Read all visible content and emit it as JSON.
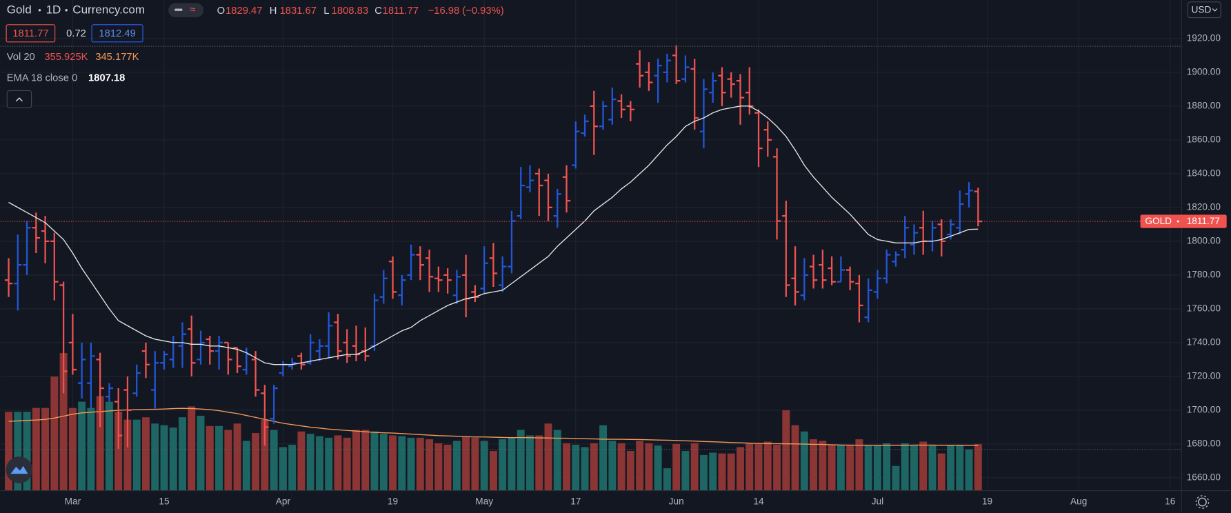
{
  "chart_data": {
    "type": "ohlc",
    "symbol": "Gold",
    "interval": "1D",
    "source": "Currency.com",
    "ohlc_labels": [
      "O",
      "H",
      "L",
      "C"
    ],
    "change": "−16.98 (−0.93%)",
    "spread": 0.72,
    "ask": 1812.49,
    "volume_name": "Vol 20",
    "volume_value_label": "355.925K",
    "volume_ma_value_label": "345.177K",
    "ema_name": "EMA 18 close 0",
    "price_tag": "GOLD",
    "currency": "USD",
    "x": [
      0,
      1,
      2,
      3,
      4,
      5,
      6,
      7,
      8,
      9,
      10,
      11,
      12,
      13,
      14,
      15,
      16,
      17,
      18,
      19,
      20,
      21,
      22,
      23,
      24,
      25,
      26,
      27,
      28,
      29,
      30,
      31,
      32,
      33,
      34,
      35,
      36,
      37,
      38,
      39,
      40,
      41,
      42,
      43,
      44,
      45,
      46,
      47,
      48,
      49,
      50,
      51,
      52,
      53,
      54,
      55,
      56,
      57,
      58,
      59,
      60,
      61,
      62,
      63,
      64,
      65,
      66,
      67,
      68,
      69,
      70,
      71,
      72,
      73,
      74,
      75,
      76,
      77,
      78,
      79,
      80,
      81,
      82,
      83,
      84,
      85,
      86,
      87,
      88,
      89,
      90,
      91,
      92,
      93,
      94,
      95,
      96,
      97,
      98,
      99,
      100,
      101,
      102,
      103,
      104,
      105,
      106
    ],
    "open": [
      1777,
      1775,
      1786,
      1808,
      1806,
      1800,
      1774,
      1740,
      1716,
      1716,
      1730,
      1708,
      1705,
      1712,
      1710,
      1735,
      1712,
      1728,
      1730,
      1738,
      1748,
      1730,
      1742,
      1735,
      1740,
      1737,
      1724,
      1730,
      1710,
      1695,
      1722,
      1726,
      1732,
      1728,
      1735,
      1738,
      1752,
      1740,
      1738,
      1735,
      1738,
      1767,
      1788,
      1768,
      1780,
      1792,
      1790,
      1778,
      1780,
      1768,
      1780,
      1770,
      1772,
      1790,
      1774,
      1785,
      1815,
      1832,
      1840,
      1836,
      1815,
      1838,
      1845,
      1864,
      1880,
      1868,
      1872,
      1883,
      1880,
      1905,
      1900,
      1898,
      1900,
      1910,
      1896,
      1902,
      1865,
      1888,
      1898,
      1896,
      1895,
      1888,
      1876,
      1866,
      1850,
      1815,
      1778,
      1768,
      1785,
      1786,
      1784,
      1776,
      1783,
      1775,
      1755,
      1770,
      1778,
      1788,
      1795,
      1798,
      1808,
      1800,
      1810,
      1804,
      1808,
      1828,
      1829.47
    ],
    "high": [
      1790,
      1804,
      1812,
      1817,
      1815,
      1805,
      1776,
      1757,
      1740,
      1740,
      1734,
      1716,
      1713,
      1720,
      1727,
      1740,
      1735,
      1735,
      1744,
      1752,
      1756,
      1747,
      1744,
      1744,
      1740,
      1737,
      1737,
      1735,
      1715,
      1715,
      1729,
      1731,
      1734,
      1745,
      1742,
      1758,
      1757,
      1748,
      1750,
      1749,
      1769,
      1783,
      1791,
      1780,
      1798,
      1797,
      1795,
      1785,
      1784,
      1783,
      1792,
      1774,
      1797,
      1799,
      1791,
      1818,
      1844,
      1845,
      1843,
      1840,
      1831,
      1845,
      1871,
      1875,
      1889,
      1883,
      1891,
      1887,
      1883,
      1913,
      1906,
      1908,
      1911,
      1916,
      1910,
      1908,
      1896,
      1900,
      1903,
      1900,
      1899,
      1903,
      1878,
      1871,
      1855,
      1824,
      1797,
      1790,
      1792,
      1795,
      1791,
      1791,
      1785,
      1780,
      1778,
      1783,
      1795,
      1794,
      1815,
      1810,
      1818,
      1812,
      1813,
      1813,
      1830,
      1835,
      1831.67
    ],
    "low": [
      1767,
      1759,
      1780,
      1793,
      1787,
      1765,
      1710,
      1721,
      1707,
      1701,
      1690,
      1705,
      1677,
      1678,
      1708,
      1719,
      1701,
      1724,
      1725,
      1725,
      1720,
      1727,
      1727,
      1724,
      1721,
      1722,
      1721,
      1708,
      1679,
      1692,
      1720,
      1724,
      1724,
      1727,
      1729,
      1731,
      1730,
      1728,
      1729,
      1729,
      1735,
      1763,
      1766,
      1762,
      1777,
      1777,
      1770,
      1770,
      1769,
      1763,
      1755,
      1764,
      1769,
      1773,
      1770,
      1781,
      1813,
      1829,
      1815,
      1812,
      1808,
      1817,
      1843,
      1862,
      1851,
      1866,
      1869,
      1873,
      1871,
      1891,
      1889,
      1882,
      1894,
      1893,
      1894,
      1866,
      1855,
      1882,
      1880,
      1885,
      1869,
      1875,
      1844,
      1850,
      1801,
      1767,
      1762,
      1765,
      1772,
      1772,
      1774,
      1776,
      1771,
      1752,
      1752,
      1766,
      1775,
      1785,
      1790,
      1792,
      1792,
      1794,
      1791,
      1801,
      1804,
      1820,
      1808.83
    ],
    "close": [
      1775,
      1786,
      1808,
      1802,
      1800,
      1776,
      1723,
      1724,
      1730,
      1732,
      1713,
      1713,
      1685,
      1700,
      1722,
      1727,
      1728,
      1733,
      1740,
      1745,
      1728,
      1740,
      1735,
      1740,
      1730,
      1726,
      1733,
      1712,
      1690,
      1713,
      1727,
      1728,
      1727,
      1740,
      1738,
      1750,
      1735,
      1732,
      1733,
      1732,
      1765,
      1778,
      1770,
      1777,
      1792,
      1786,
      1779,
      1777,
      1777,
      1779,
      1766,
      1767,
      1787,
      1781,
      1785,
      1812,
      1833,
      1836,
      1833,
      1820,
      1828,
      1824,
      1865,
      1871,
      1868,
      1880,
      1884,
      1878,
      1878,
      1898,
      1894,
      1904,
      1907,
      1895,
      1903,
      1873,
      1890,
      1895,
      1888,
      1893,
      1885,
      1880,
      1855,
      1860,
      1812,
      1774,
      1770,
      1780,
      1777,
      1777,
      1776,
      1783,
      1776,
      1762,
      1771,
      1778,
      1792,
      1792,
      1808,
      1805,
      1800,
      1808,
      1800,
      1810,
      1822,
      1830,
      1811.77
    ],
    "volume": [
      603,
      603,
      603,
      633,
      633,
      874,
      1055,
      633,
      681,
      633,
      724,
      681,
      603,
      543,
      543,
      561,
      513,
      500,
      482,
      561,
      645,
      573,
      494,
      494,
      464,
      513,
      380,
      440,
      543,
      464,
      332,
      350,
      452,
      434,
      416,
      404,
      422,
      404,
      464,
      464,
      452,
      434,
      422,
      416,
      404,
      404,
      392,
      362,
      350,
      380,
      410,
      404,
      380,
      302,
      392,
      404,
      464,
      422,
      422,
      513,
      464,
      362,
      350,
      332,
      362,
      500,
      380,
      362,
      302,
      380,
      362,
      344,
      169,
      356,
      302,
      362,
      271,
      289,
      283,
      283,
      332,
      362,
      356,
      374,
      350,
      615,
      500,
      452,
      392,
      380,
      350,
      350,
      344,
      392,
      344,
      344,
      362,
      187,
      362,
      344,
      374,
      344,
      283,
      350,
      350,
      314,
      355.925
    ],
    "volume_ma": [
      530,
      533,
      537,
      540,
      545,
      555,
      570,
      585,
      595,
      600,
      605,
      610,
      615,
      618,
      620,
      622,
      623,
      625,
      628,
      630,
      628,
      625,
      620,
      612,
      600,
      590,
      575,
      560,
      545,
      530,
      515,
      505,
      495,
      485,
      478,
      470,
      465,
      460,
      455,
      450,
      445,
      442,
      440,
      436,
      432,
      428,
      424,
      420,
      418,
      415,
      412,
      410,
      410,
      408,
      406,
      405,
      405,
      404,
      403,
      402,
      400,
      400,
      398,
      396,
      395,
      393,
      392,
      392,
      391,
      390,
      388,
      386,
      385,
      383,
      380,
      378,
      375,
      373,
      370,
      367,
      365,
      362,
      360,
      358,
      358,
      357,
      356,
      355,
      353,
      352,
      350,
      348,
      347,
      346,
      346,
      345,
      345,
      346,
      346,
      347,
      347,
      347,
      346,
      346,
      346,
      345,
      345.177
    ],
    "ema": [
      1823,
      1820,
      1817,
      1814,
      1811,
      1806,
      1801,
      1793,
      1784,
      1776,
      1768,
      1760,
      1753,
      1750,
      1747,
      1744,
      1742,
      1741,
      1740,
      1740,
      1739,
      1739,
      1738,
      1738,
      1737,
      1736,
      1734,
      1731,
      1728,
      1727,
      1727,
      1727,
      1728,
      1729,
      1730,
      1731,
      1732,
      1733,
      1733,
      1735,
      1738,
      1741,
      1744,
      1747,
      1749,
      1753,
      1756,
      1759,
      1762,
      1764,
      1766,
      1767,
      1769,
      1770,
      1771,
      1775,
      1779,
      1783,
      1787,
      1791,
      1797,
      1802,
      1807,
      1812,
      1818,
      1822,
      1826,
      1831,
      1835,
      1840,
      1845,
      1851,
      1857,
      1862,
      1868,
      1871,
      1873,
      1876,
      1878,
      1879,
      1880,
      1880,
      1877,
      1873,
      1868,
      1862,
      1854,
      1845,
      1838,
      1832,
      1826,
      1821,
      1816,
      1810,
      1804,
      1801,
      1800,
      1799,
      1799,
      1799,
      1800,
      1800,
      1801,
      1803,
      1805,
      1807,
      1807.18
    ],
    "xlim": [
      -0.9,
      128.2
    ],
    "xticks": [
      {
        "value": 7,
        "label": "Mar"
      },
      {
        "value": 17,
        "label": "15"
      },
      {
        "value": 30,
        "label": "Apr"
      },
      {
        "value": 42,
        "label": "19"
      },
      {
        "value": 52,
        "label": "May"
      },
      {
        "value": 62,
        "label": "17"
      },
      {
        "value": 73,
        "label": "Jun"
      },
      {
        "value": 82,
        "label": "14"
      },
      {
        "value": 95,
        "label": "Jul"
      },
      {
        "value": 107,
        "label": "19"
      },
      {
        "value": 117,
        "label": "Aug"
      },
      {
        "value": 127,
        "label": "16"
      }
    ],
    "ylim": [
      1652.6,
      1942.8
    ],
    "yticks": [
      {
        "value": 1660,
        "label": "1660.00"
      },
      {
        "value": 1680,
        "label": "1680.00"
      },
      {
        "value": 1700,
        "label": "1700.00"
      },
      {
        "value": 1720,
        "label": "1720.00"
      },
      {
        "value": 1740,
        "label": "1740.00"
      },
      {
        "value": 1760,
        "label": "1760.00"
      },
      {
        "value": 1780,
        "label": "1780.00"
      },
      {
        "value": 1800,
        "label": "1800.00"
      },
      {
        "value": 1820,
        "label": "1820.00"
      },
      {
        "value": 1840,
        "label": "1840.00"
      },
      {
        "value": 1860,
        "label": "1860.00"
      },
      {
        "value": 1880,
        "label": "1880.00"
      },
      {
        "value": 1900,
        "label": "1900.00"
      },
      {
        "value": 1920,
        "label": "1920.00"
      }
    ],
    "volume_ylim": [
      0,
      3770
    ],
    "grid": true,
    "up_color": "#2157d8",
    "down_color": "#f0534f",
    "volume_up_color": "#1e6663",
    "volume_down_color": "#8c3535",
    "ema_color": "#e6e6e6",
    "volume_ma_color": "#f29a5a"
  }
}
